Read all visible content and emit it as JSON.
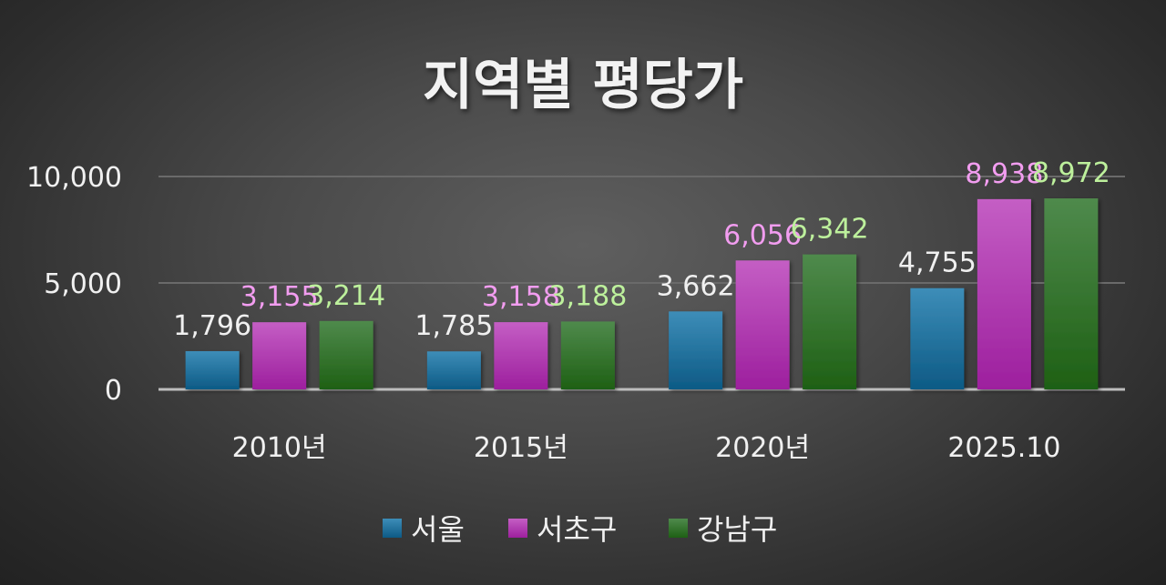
{
  "chart_data": {
    "type": "bar",
    "title": "지역별 평당가",
    "categories": [
      "2010년",
      "2015년",
      "2020년",
      "2025.10"
    ],
    "series": [
      {
        "name": "서울",
        "values": [
          1796,
          1785,
          3662,
          4755
        ],
        "labels": [
          "1,796",
          "1,785",
          "3,662",
          "4,755"
        ],
        "color": "#1f6e9c",
        "label_color": "#f0f0f0"
      },
      {
        "name": "서초구",
        "values": [
          3155,
          3158,
          6056,
          8938
        ],
        "labels": [
          "3,155",
          "3,158",
          "6,056",
          "8,938"
        ],
        "color": "#b73ab8",
        "label_color": "#f29df0"
      },
      {
        "name": "강남구",
        "values": [
          3214,
          3188,
          6342,
          8972
        ],
        "labels": [
          "3,214",
          "3,188",
          "6,342",
          "8,972"
        ],
        "color": "#3f8a3a",
        "label_color": "#bdf09c"
      }
    ],
    "yticks": [
      "0",
      "5,000",
      "10,000"
    ],
    "ytick_values": [
      0,
      5000,
      10000
    ],
    "ylim": [
      0,
      10000
    ],
    "xlabel": "",
    "ylabel": "",
    "grid": true,
    "legend_position": "bottom"
  }
}
